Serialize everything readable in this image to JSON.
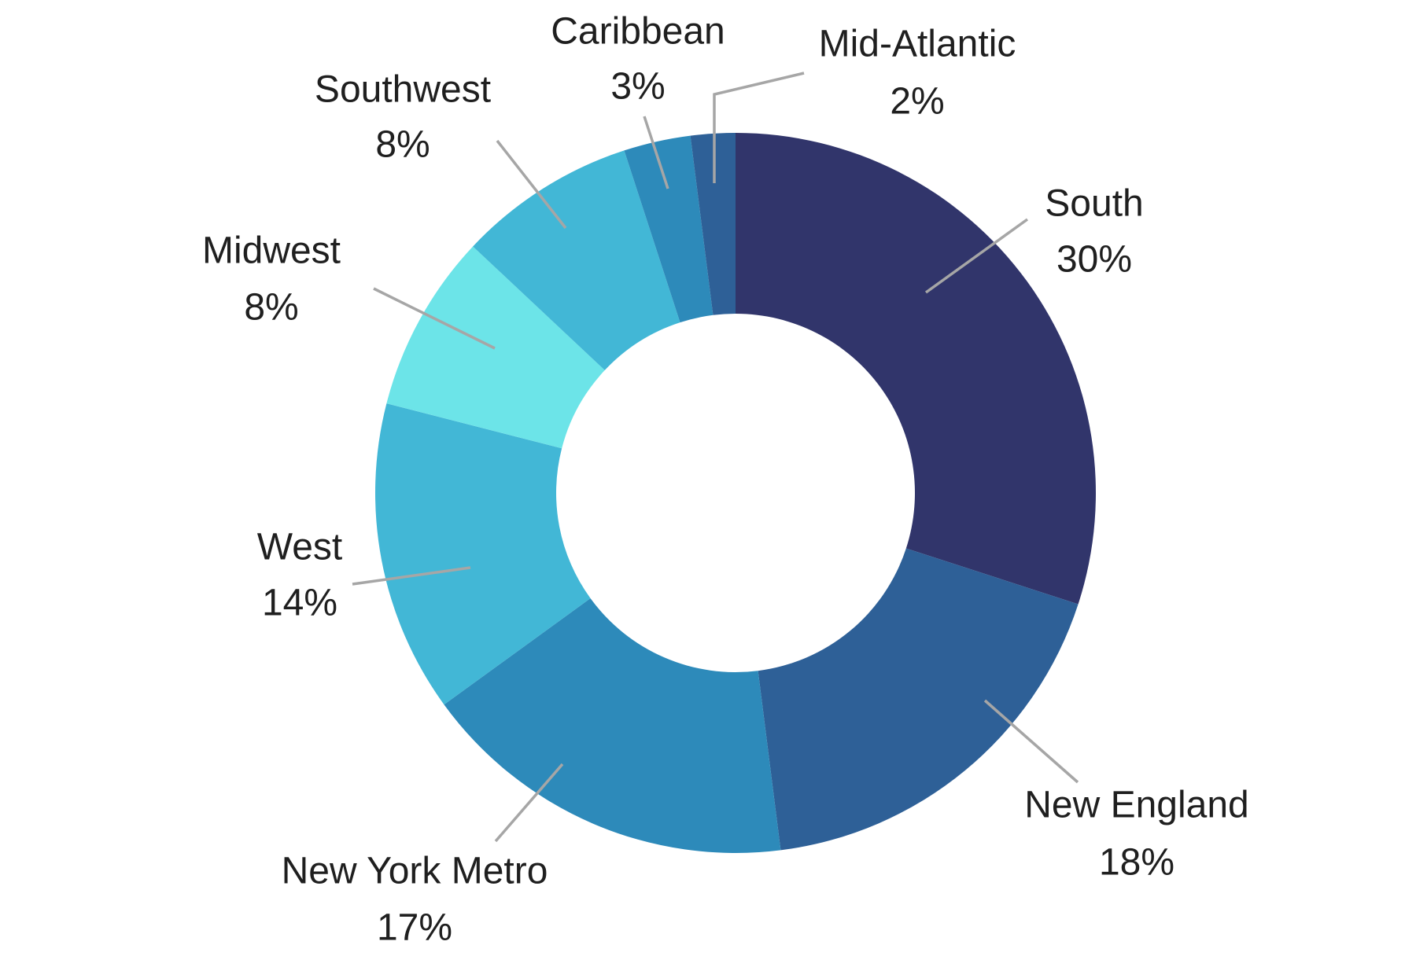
{
  "chart_data": {
    "type": "donut",
    "categories": [
      "South",
      "New England",
      "New York Metro",
      "West",
      "Midwest",
      "Southwest",
      "Caribbean",
      "Mid-Atlantic"
    ],
    "values": [
      30,
      18,
      17,
      14,
      8,
      8,
      3,
      2
    ],
    "value_labels": [
      "30%",
      "18%",
      "17%",
      "14%",
      "8%",
      "8%",
      "3%",
      "2%"
    ],
    "colors": [
      "#31356b",
      "#2e6097",
      "#2d8aba",
      "#42b7d6",
      "#6ce4e8",
      "#42b7d6",
      "#2d8aba",
      "#2e6097"
    ]
  }
}
